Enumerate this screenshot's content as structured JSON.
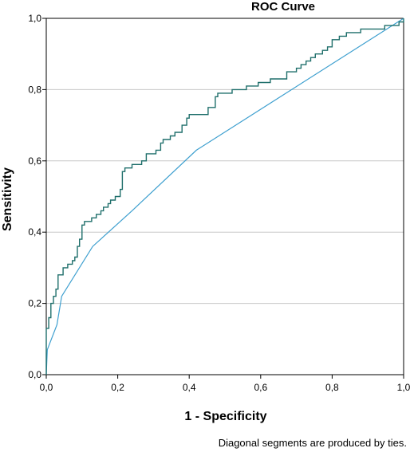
{
  "chart_data": {
    "type": "line",
    "title": "ROC Curve",
    "xlabel": "1 - Specificity",
    "ylabel": "Sensitivity",
    "xlim": [
      0,
      1
    ],
    "ylim": [
      0,
      1
    ],
    "x_ticks": [
      "0,0",
      "0,2",
      "0,4",
      "0,6",
      "0,8",
      "1,0"
    ],
    "y_ticks": [
      "0,0",
      "0,2",
      "0,4",
      "0,6",
      "0,8",
      "1,0"
    ],
    "grid": "horizontal",
    "footnote": "Diagonal segments are produced by ties.",
    "series": [
      {
        "color": "#1f6f6b",
        "step": true,
        "points": [
          [
            0.0,
            0.0
          ],
          [
            0.0,
            0.13
          ],
          [
            0.007,
            0.13
          ],
          [
            0.007,
            0.16
          ],
          [
            0.013,
            0.16
          ],
          [
            0.013,
            0.2
          ],
          [
            0.02,
            0.2
          ],
          [
            0.02,
            0.22
          ],
          [
            0.027,
            0.22
          ],
          [
            0.027,
            0.24
          ],
          [
            0.033,
            0.24
          ],
          [
            0.033,
            0.28
          ],
          [
            0.047,
            0.28
          ],
          [
            0.047,
            0.3
          ],
          [
            0.06,
            0.3
          ],
          [
            0.06,
            0.31
          ],
          [
            0.073,
            0.31
          ],
          [
            0.073,
            0.32
          ],
          [
            0.08,
            0.32
          ],
          [
            0.08,
            0.33
          ],
          [
            0.087,
            0.33
          ],
          [
            0.087,
            0.36
          ],
          [
            0.093,
            0.36
          ],
          [
            0.093,
            0.38
          ],
          [
            0.1,
            0.38
          ],
          [
            0.1,
            0.42
          ],
          [
            0.107,
            0.42
          ],
          [
            0.107,
            0.43
          ],
          [
            0.127,
            0.43
          ],
          [
            0.127,
            0.44
          ],
          [
            0.14,
            0.44
          ],
          [
            0.14,
            0.45
          ],
          [
            0.153,
            0.45
          ],
          [
            0.153,
            0.46
          ],
          [
            0.16,
            0.46
          ],
          [
            0.16,
            0.47
          ],
          [
            0.173,
            0.47
          ],
          [
            0.173,
            0.48
          ],
          [
            0.18,
            0.48
          ],
          [
            0.18,
            0.49
          ],
          [
            0.193,
            0.49
          ],
          [
            0.193,
            0.5
          ],
          [
            0.207,
            0.5
          ],
          [
            0.207,
            0.52
          ],
          [
            0.213,
            0.52
          ],
          [
            0.213,
            0.57
          ],
          [
            0.22,
            0.57
          ],
          [
            0.22,
            0.58
          ],
          [
            0.24,
            0.58
          ],
          [
            0.24,
            0.59
          ],
          [
            0.267,
            0.59
          ],
          [
            0.267,
            0.6
          ],
          [
            0.28,
            0.6
          ],
          [
            0.28,
            0.62
          ],
          [
            0.307,
            0.62
          ],
          [
            0.307,
            0.63
          ],
          [
            0.32,
            0.63
          ],
          [
            0.32,
            0.65
          ],
          [
            0.327,
            0.65
          ],
          [
            0.327,
            0.66
          ],
          [
            0.347,
            0.66
          ],
          [
            0.347,
            0.67
          ],
          [
            0.36,
            0.67
          ],
          [
            0.36,
            0.68
          ],
          [
            0.38,
            0.68
          ],
          [
            0.38,
            0.7
          ],
          [
            0.393,
            0.7
          ],
          [
            0.393,
            0.72
          ],
          [
            0.4,
            0.72
          ],
          [
            0.4,
            0.73
          ],
          [
            0.453,
            0.73
          ],
          [
            0.453,
            0.75
          ],
          [
            0.473,
            0.75
          ],
          [
            0.473,
            0.78
          ],
          [
            0.48,
            0.78
          ],
          [
            0.48,
            0.79
          ],
          [
            0.52,
            0.79
          ],
          [
            0.52,
            0.8
          ],
          [
            0.56,
            0.8
          ],
          [
            0.56,
            0.81
          ],
          [
            0.593,
            0.81
          ],
          [
            0.593,
            0.82
          ],
          [
            0.627,
            0.82
          ],
          [
            0.627,
            0.83
          ],
          [
            0.673,
            0.83
          ],
          [
            0.673,
            0.85
          ],
          [
            0.7,
            0.85
          ],
          [
            0.7,
            0.86
          ],
          [
            0.713,
            0.86
          ],
          [
            0.713,
            0.87
          ],
          [
            0.727,
            0.87
          ],
          [
            0.727,
            0.88
          ],
          [
            0.74,
            0.88
          ],
          [
            0.74,
            0.89
          ],
          [
            0.753,
            0.89
          ],
          [
            0.753,
            0.9
          ],
          [
            0.773,
            0.9
          ],
          [
            0.773,
            0.91
          ],
          [
            0.787,
            0.91
          ],
          [
            0.787,
            0.92
          ],
          [
            0.8,
            0.92
          ],
          [
            0.8,
            0.94
          ],
          [
            0.82,
            0.94
          ],
          [
            0.82,
            0.95
          ],
          [
            0.84,
            0.95
          ],
          [
            0.84,
            0.96
          ],
          [
            0.88,
            0.96
          ],
          [
            0.88,
            0.97
          ],
          [
            0.947,
            0.97
          ],
          [
            0.947,
            0.98
          ],
          [
            0.987,
            0.98
          ],
          [
            0.987,
            0.99
          ],
          [
            1.0,
            0.99
          ],
          [
            1.0,
            1.0
          ]
        ]
      },
      {
        "color": "#3d9fcf",
        "step": false,
        "points": [
          [
            0.0,
            0.0
          ],
          [
            0.003,
            0.07
          ],
          [
            0.03,
            0.14
          ],
          [
            0.043,
            0.22
          ],
          [
            0.13,
            0.36
          ],
          [
            0.24,
            0.46
          ],
          [
            0.42,
            0.63
          ],
          [
            1.0,
            1.0
          ]
        ]
      }
    ]
  }
}
